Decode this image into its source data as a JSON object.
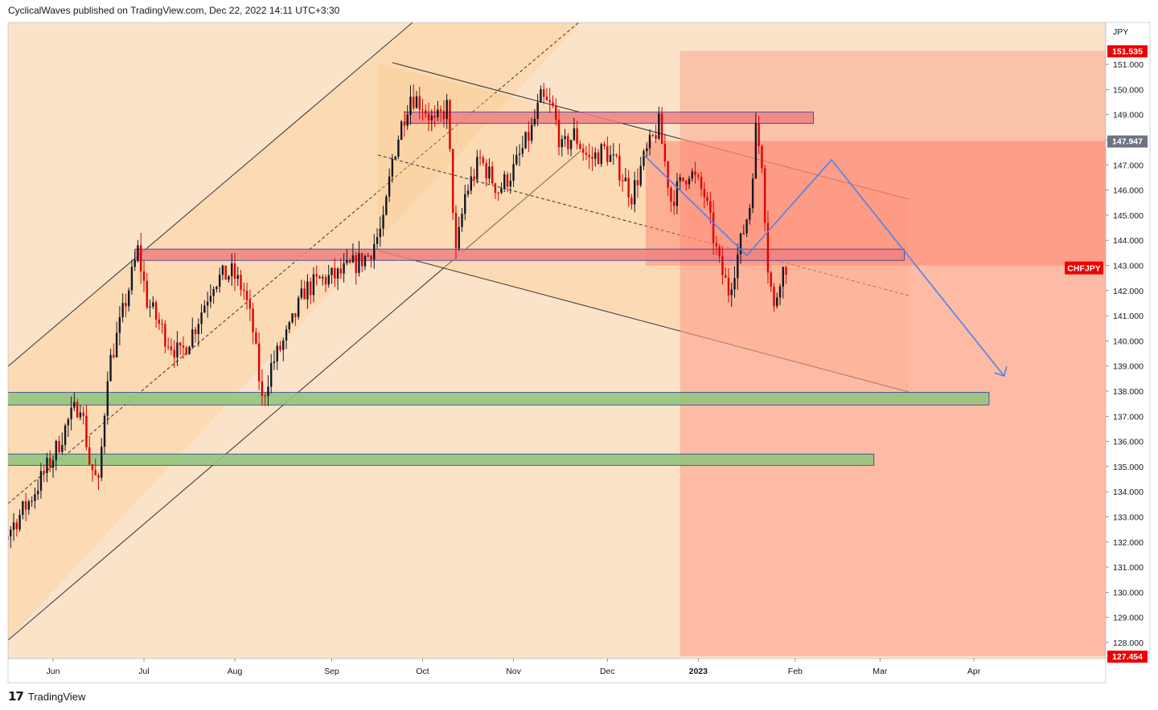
{
  "header": {
    "publish_line": "CyclicalWaves published on TradingView.com, Dec 22, 2022 14:11 UTC+3:30"
  },
  "footer": {
    "logo_mark": "17",
    "logo_text": "TradingView"
  },
  "colors": {
    "background": "#fbe3ca",
    "candle_up": "#131722",
    "candle_down": "#e00000",
    "resistance_zone": "#f08080",
    "support_zone": "#93c47d",
    "forecast_line": "#4a86e8",
    "loss_zone": "#ff9e8a",
    "price_tag_red": "#ef0000",
    "price_tag_gray": "#6d7385",
    "channel_fill": "#fdc98c"
  },
  "chart_data": {
    "type": "candlestick",
    "symbol": "CHFJPY",
    "currency": "JPY",
    "ylim": [
      127.454,
      151.9
    ],
    "x_ticks": [
      "Jun",
      "Jul",
      "Aug",
      "Sep",
      "Oct",
      "Nov",
      "Dec",
      "2023",
      "Feb",
      "Mar",
      "Apr"
    ],
    "y_ticks": [
      "151.000",
      "150.000",
      "149.000",
      "148.000",
      "147.000",
      "146.000",
      "145.000",
      "144.000",
      "143.000",
      "142.000",
      "141.000",
      "140.000",
      "139.000",
      "138.000",
      "137.000",
      "136.000",
      "135.000",
      "134.000",
      "133.000",
      "132.000",
      "131.000",
      "130.000",
      "129.000",
      "128.000"
    ],
    "price_tags": [
      {
        "value": "151.535",
        "style": "red"
      },
      {
        "value": "147.947",
        "style": "gray"
      },
      {
        "value": "127.454",
        "style": "red"
      },
      {
        "value": "CHFJPY",
        "style": "red",
        "level": 142.9
      }
    ],
    "path": [
      [
        "2022-05-10",
        129.6
      ],
      [
        "2022-05-20",
        132.2
      ],
      [
        "2022-05-28",
        133.6
      ],
      [
        "2022-06-05",
        135.4
      ],
      [
        "2022-06-10",
        136.8
      ],
      [
        "2022-06-14",
        137.6
      ],
      [
        "2022-06-17",
        135.2
      ],
      [
        "2022-06-20",
        134.2
      ],
      [
        "2022-06-23",
        138.8
      ],
      [
        "2022-06-27",
        140.6
      ],
      [
        "2022-07-01",
        142.6
      ],
      [
        "2022-07-03",
        143.6
      ],
      [
        "2022-07-06",
        141.6
      ],
      [
        "2022-07-12",
        140.2
      ],
      [
        "2022-07-17",
        139.4
      ],
      [
        "2022-07-22",
        140.6
      ],
      [
        "2022-07-28",
        142.4
      ],
      [
        "2022-08-03",
        142.7
      ],
      [
        "2022-08-07",
        142.0
      ],
      [
        "2022-08-10",
        140.4
      ],
      [
        "2022-08-13",
        137.6
      ],
      [
        "2022-08-16",
        139.0
      ],
      [
        "2022-08-22",
        140.4
      ],
      [
        "2022-08-27",
        142.0
      ],
      [
        "2022-09-01",
        142.4
      ],
      [
        "2022-09-07",
        142.6
      ],
      [
        "2022-09-12",
        143.0
      ],
      [
        "2022-09-17",
        143.4
      ],
      [
        "2022-09-22",
        144.6
      ],
      [
        "2022-09-25",
        147.2
      ],
      [
        "2022-09-28",
        148.6
      ],
      [
        "2022-10-01",
        149.8
      ],
      [
        "2022-10-05",
        149.4
      ],
      [
        "2022-10-09",
        148.6
      ],
      [
        "2022-10-13",
        149.3
      ],
      [
        "2022-10-16",
        143.4
      ],
      [
        "2022-10-19",
        145.8
      ],
      [
        "2022-10-24",
        147.2
      ],
      [
        "2022-10-30",
        146.0
      ],
      [
        "2022-11-04",
        146.8
      ],
      [
        "2022-11-10",
        148.4
      ],
      [
        "2022-11-13",
        149.6
      ],
      [
        "2022-11-17",
        149.2
      ],
      [
        "2022-11-20",
        147.6
      ],
      [
        "2022-11-24",
        148.2
      ],
      [
        "2022-11-29",
        147.2
      ],
      [
        "2022-12-04",
        147.6
      ],
      [
        "2022-12-09",
        146.8
      ],
      [
        "2022-12-13",
        145.8
      ],
      [
        "2022-12-17",
        147.2
      ],
      [
        "2022-12-22",
        148.6
      ],
      [
        "2022-12-26",
        145.6
      ],
      [
        "2023-01-01",
        146.8
      ],
      [
        "2023-01-06",
        145.8
      ],
      [
        "2023-01-11",
        143.0
      ],
      [
        "2023-01-14",
        142.0
      ],
      [
        "2023-01-17",
        143.4
      ],
      [
        "2023-01-21",
        145.4
      ],
      [
        "2023-01-23",
        148.4
      ],
      [
        "2023-01-25",
        147.2
      ],
      [
        "2023-01-27",
        143.0
      ],
      [
        "2023-01-29",
        141.2
      ],
      [
        "2023-01-31",
        142.6
      ],
      [
        "2023-02-02",
        143.0
      ]
    ],
    "zones": [
      {
        "name": "resistance-upper",
        "from": "2022-09-29",
        "to": "2023-02-11",
        "low": 148.65,
        "high": 149.1
      },
      {
        "name": "resistance-lower",
        "from": "2022-07-02",
        "to": "2023-03-13",
        "low": 143.2,
        "high": 143.65
      },
      {
        "name": "support-upper",
        "from": "2022-05-10",
        "to": "2023-04-10",
        "low": 137.45,
        "high": 137.95
      },
      {
        "name": "support-lower",
        "from": "2022-05-10",
        "to": "2023-03-03",
        "low": 135.05,
        "high": 135.5
      }
    ],
    "forecast_path": [
      [
        "2022-12-17",
        147.4
      ],
      [
        "2023-01-20",
        143.4
      ],
      [
        "2023-02-17",
        147.2
      ],
      [
        "2023-04-15",
        138.6
      ]
    ],
    "risk_box": {
      "from": "2022-12-29",
      "to": "2023-05-30",
      "entry": 147.947,
      "target": 127.454,
      "stop": 151.535
    }
  }
}
